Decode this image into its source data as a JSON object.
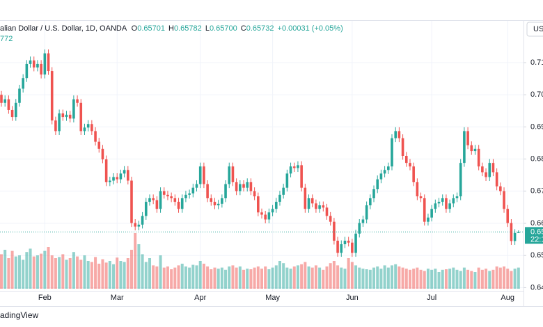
{
  "header": {
    "symbol": "alian Dollar / U.S. Dollar, 1D, OANDA",
    "ohlc": [
      {
        "label": "O",
        "value": "0.65701"
      },
      {
        "label": "H",
        "value": "0.65782"
      },
      {
        "label": "L",
        "value": "0.65700"
      },
      {
        "label": "C",
        "value": "0.65732"
      }
    ],
    "change": "+0.00031 (+0.05%)",
    "indicator": "772",
    "currency": "USD",
    "price_tag": "0.65",
    "countdown": "22:1",
    "brand": "adingView"
  },
  "chart_data": {
    "type": "candlestick",
    "up_color": "#26a69a",
    "down_color": "#ef5350",
    "grid": true,
    "ylim": [
      0.639,
      0.723
    ],
    "yticks": [
      0.71,
      {
        "value": 0.7,
        "label": "0.70"
      },
      0.69,
      0.68,
      0.67,
      0.66,
      0.65,
      0.64
    ],
    "categories": [
      null,
      null,
      null,
      null,
      null,
      null,
      null,
      null,
      null,
      null,
      null,
      null,
      "Feb",
      null,
      null,
      null,
      null,
      null,
      null,
      null,
      null,
      null,
      null,
      null,
      null,
      null,
      null,
      null,
      null,
      null,
      null,
      null,
      "Mar",
      null,
      null,
      null,
      null,
      null,
      null,
      null,
      null,
      null,
      null,
      null,
      null,
      null,
      null,
      null,
      null,
      null,
      null,
      null,
      null,
      null,
      null,
      "Apr",
      null,
      null,
      null,
      null,
      null,
      null,
      null,
      null,
      null,
      null,
      null,
      null,
      null,
      null,
      null,
      null,
      null,
      null,
      null,
      "May",
      null,
      null,
      null,
      null,
      null,
      null,
      null,
      null,
      null,
      null,
      null,
      null,
      null,
      null,
      null,
      null,
      null,
      null,
      null,
      null,
      null,
      "Jun",
      null,
      null,
      null,
      null,
      null,
      null,
      null,
      null,
      null,
      null,
      null,
      null,
      null,
      null,
      null,
      null,
      null,
      null,
      null,
      null,
      null,
      "Jul",
      null,
      null,
      null,
      null,
      null,
      null,
      null,
      null,
      null,
      null,
      null,
      null,
      null,
      null,
      null,
      null,
      null,
      null,
      null,
      null,
      "Aug",
      null,
      null,
      null
    ],
    "open": [
      0.7,
      0.6975,
      0.6986,
      0.6953,
      0.6931,
      0.6975,
      0.7019,
      0.7052,
      0.7096,
      0.7107,
      0.7085,
      0.7096,
      0.7063,
      0.7129,
      0.7074,
      0.692,
      0.6887,
      0.6942,
      0.6931,
      0.6938,
      0.6926,
      0.6986,
      0.6975,
      0.6887,
      0.6898,
      0.6909,
      0.6887,
      0.6854,
      0.6832,
      0.6799,
      0.6728,
      0.6733,
      0.6744,
      0.6737,
      0.6755,
      0.6766,
      0.6733,
      0.6601,
      0.659,
      0.6596,
      0.6623,
      0.6667,
      0.6678,
      0.6672,
      0.6645,
      0.67,
      0.6689,
      0.6684,
      0.6678,
      0.6667,
      0.6645,
      0.6678,
      0.6689,
      0.6693,
      0.6711,
      0.6722,
      0.6777,
      0.6722,
      0.6678,
      0.6667,
      0.6656,
      0.6661,
      0.6678,
      0.6722,
      0.6777,
      0.6728,
      0.67,
      0.6722,
      0.6711,
      0.6728,
      0.67,
      0.6684,
      0.6634,
      0.6627,
      0.6612,
      0.6634,
      0.6645,
      0.6667,
      0.6689,
      0.6711,
      0.6755,
      0.6777,
      0.6772,
      0.6781,
      0.6711,
      0.6645,
      0.6678,
      0.6662,
      0.6645,
      0.6656,
      0.6649,
      0.6623,
      0.6605,
      0.6546,
      0.6508,
      0.6535,
      0.6546,
      0.654,
      0.6508,
      0.6568,
      0.6601,
      0.6612,
      0.6656,
      0.6678,
      0.6706,
      0.6737,
      0.6755,
      0.6766,
      0.6777,
      0.6865,
      0.6887,
      0.6865,
      0.681,
      0.6788,
      0.6777,
      0.6728,
      0.6684,
      0.6678,
      0.6605,
      0.6618,
      0.6645,
      0.6662,
      0.6667,
      0.6678,
      0.6645,
      0.6662,
      0.6678,
      0.6684,
      0.6788,
      0.6887,
      0.6843,
      0.6825,
      0.6832,
      0.6777,
      0.6759,
      0.6744,
      0.6788,
      0.6759,
      0.6715,
      0.67,
      0.6645,
      0.6601,
      0.6545,
      0.65701
    ],
    "high": [
      0.7012,
      0.6998,
      0.6998,
      0.6965,
      0.6987,
      0.7031,
      0.7064,
      0.7108,
      0.7119,
      0.7119,
      0.7108,
      0.7108,
      0.7141,
      0.7141,
      0.7086,
      0.6932,
      0.6954,
      0.6954,
      0.695,
      0.695,
      0.6998,
      0.6998,
      0.6987,
      0.691,
      0.6921,
      0.6921,
      0.6899,
      0.6866,
      0.6844,
      0.6811,
      0.6745,
      0.6756,
      0.6756,
      0.6767,
      0.6778,
      0.6778,
      0.6745,
      0.6613,
      0.6608,
      0.6635,
      0.6679,
      0.669,
      0.669,
      0.6684,
      0.6712,
      0.6712,
      0.6701,
      0.6696,
      0.669,
      0.6679,
      0.669,
      0.6701,
      0.6705,
      0.6723,
      0.6734,
      0.6789,
      0.6789,
      0.6734,
      0.669,
      0.6679,
      0.6673,
      0.669,
      0.6734,
      0.6789,
      0.6789,
      0.674,
      0.6734,
      0.6734,
      0.674,
      0.674,
      0.6712,
      0.6696,
      0.6646,
      0.6639,
      0.6646,
      0.6657,
      0.6679,
      0.6701,
      0.6723,
      0.6767,
      0.6789,
      0.6789,
      0.6793,
      0.6793,
      0.6723,
      0.669,
      0.669,
      0.6674,
      0.6668,
      0.6668,
      0.6661,
      0.6635,
      0.6617,
      0.6558,
      0.6547,
      0.6558,
      0.6558,
      0.6552,
      0.658,
      0.6613,
      0.6624,
      0.6668,
      0.669,
      0.6718,
      0.6749,
      0.6767,
      0.6778,
      0.6789,
      0.6877,
      0.6899,
      0.6899,
      0.6877,
      0.6822,
      0.68,
      0.6789,
      0.674,
      0.6696,
      0.669,
      0.663,
      0.6657,
      0.6674,
      0.6679,
      0.669,
      0.669,
      0.6674,
      0.669,
      0.6696,
      0.68,
      0.6899,
      0.6899,
      0.6855,
      0.6844,
      0.6844,
      0.6789,
      0.6771,
      0.68,
      0.68,
      0.6771,
      0.6727,
      0.6712,
      0.6657,
      0.6613,
      0.6582,
      0.65782
    ],
    "low": [
      0.6963,
      0.6963,
      0.6941,
      0.6919,
      0.6919,
      0.6963,
      0.7007,
      0.704,
      0.7084,
      0.7073,
      0.7073,
      0.7051,
      0.7051,
      0.7062,
      0.6908,
      0.6875,
      0.6875,
      0.6919,
      0.6919,
      0.6914,
      0.6914,
      0.6963,
      0.6875,
      0.6875,
      0.6886,
      0.6875,
      0.6842,
      0.682,
      0.6787,
      0.6716,
      0.6716,
      0.6721,
      0.6725,
      0.6725,
      0.6743,
      0.6721,
      0.6589,
      0.6578,
      0.6578,
      0.6584,
      0.6611,
      0.6655,
      0.666,
      0.6633,
      0.6633,
      0.6677,
      0.6672,
      0.6666,
      0.6655,
      0.6633,
      0.6633,
      0.6666,
      0.6677,
      0.6681,
      0.6699,
      0.671,
      0.671,
      0.6666,
      0.6655,
      0.6644,
      0.6644,
      0.6649,
      0.6666,
      0.671,
      0.6716,
      0.6688,
      0.6688,
      0.6699,
      0.6699,
      0.6688,
      0.6672,
      0.6622,
      0.6615,
      0.66,
      0.66,
      0.6622,
      0.6633,
      0.6655,
      0.6677,
      0.6699,
      0.6743,
      0.676,
      0.676,
      0.6699,
      0.6633,
      0.6633,
      0.665,
      0.6633,
      0.6633,
      0.6637,
      0.6611,
      0.6593,
      0.6534,
      0.6496,
      0.6496,
      0.6523,
      0.6528,
      0.6496,
      0.6496,
      0.6556,
      0.6589,
      0.66,
      0.6644,
      0.6666,
      0.6694,
      0.6725,
      0.6743,
      0.6754,
      0.6765,
      0.6853,
      0.6853,
      0.6798,
      0.6776,
      0.6765,
      0.6716,
      0.6672,
      0.6666,
      0.6593,
      0.6593,
      0.6606,
      0.6633,
      0.665,
      0.6655,
      0.6633,
      0.6633,
      0.665,
      0.6666,
      0.6672,
      0.6776,
      0.6831,
      0.6813,
      0.6813,
      0.6765,
      0.6747,
      0.6732,
      0.6732,
      0.6747,
      0.6703,
      0.6688,
      0.6633,
      0.6589,
      0.6533,
      0.6533,
      0.657
    ],
    "close": [
      0.6975,
      0.6986,
      0.6953,
      0.6931,
      0.6975,
      0.7019,
      0.7052,
      0.7096,
      0.7107,
      0.7085,
      0.7096,
      0.7063,
      0.7129,
      0.7074,
      0.692,
      0.6887,
      0.6942,
      0.6931,
      0.6938,
      0.6926,
      0.6986,
      0.6975,
      0.6887,
      0.6898,
      0.6909,
      0.6887,
      0.6854,
      0.6832,
      0.6799,
      0.6728,
      0.6733,
      0.6744,
      0.6737,
      0.6755,
      0.6766,
      0.6733,
      0.6601,
      0.659,
      0.6596,
      0.6623,
      0.6667,
      0.6678,
      0.6672,
      0.6645,
      0.67,
      0.6689,
      0.6684,
      0.6678,
      0.6667,
      0.6645,
      0.6678,
      0.6689,
      0.6693,
      0.6711,
      0.6722,
      0.6777,
      0.6722,
      0.6678,
      0.6667,
      0.6656,
      0.6661,
      0.6678,
      0.6722,
      0.6777,
      0.6728,
      0.67,
      0.6722,
      0.6711,
      0.6728,
      0.67,
      0.6684,
      0.6634,
      0.6627,
      0.6612,
      0.6634,
      0.6645,
      0.6667,
      0.6689,
      0.6711,
      0.6755,
      0.6777,
      0.6772,
      0.6781,
      0.6711,
      0.6645,
      0.6678,
      0.6662,
      0.6645,
      0.6656,
      0.6649,
      0.6623,
      0.6605,
      0.6546,
      0.6508,
      0.6535,
      0.6546,
      0.654,
      0.6508,
      0.6568,
      0.6601,
      0.6612,
      0.6656,
      0.6678,
      0.6706,
      0.6737,
      0.6755,
      0.6766,
      0.6777,
      0.6865,
      0.6887,
      0.6865,
      0.681,
      0.6788,
      0.6777,
      0.6728,
      0.6684,
      0.6678,
      0.6605,
      0.6618,
      0.6645,
      0.6662,
      0.6667,
      0.6678,
      0.6645,
      0.6662,
      0.6678,
      0.6684,
      0.6788,
      0.6887,
      0.6843,
      0.6825,
      0.6832,
      0.6777,
      0.6759,
      0.6744,
      0.6788,
      0.6759,
      0.6715,
      0.67,
      0.6645,
      0.6601,
      0.6545,
      0.65701,
      0.65732
    ],
    "volume": [
      62,
      70,
      55,
      68,
      58,
      60,
      52,
      66,
      72,
      58,
      60,
      63,
      68,
      75,
      60,
      55,
      57,
      62,
      52,
      55,
      66,
      58,
      52,
      60,
      50,
      48,
      57,
      45,
      53,
      47,
      50,
      44,
      56,
      50,
      48,
      55,
      70,
      100,
      80,
      62,
      48,
      55,
      42,
      40,
      60,
      38,
      40,
      35,
      38,
      42,
      45,
      40,
      38,
      43,
      42,
      50,
      45,
      40,
      35,
      38,
      36,
      38,
      34,
      40,
      42,
      38,
      40,
      34,
      36,
      35,
      38,
      40,
      36,
      40,
      35,
      38,
      42,
      50,
      46,
      38,
      36,
      40,
      42,
      44,
      48,
      40,
      38,
      42,
      38,
      34,
      40,
      46,
      50,
      42,
      38,
      36,
      55,
      48,
      42,
      38,
      36,
      35,
      34,
      38,
      40,
      36,
      42,
      38,
      42,
      44,
      40,
      38,
      36,
      34,
      36,
      38,
      34,
      32,
      36,
      34,
      36,
      30,
      34,
      35,
      36,
      38,
      34,
      32,
      38,
      34,
      32,
      30,
      38,
      34,
      36,
      32,
      34,
      40,
      38,
      40,
      36,
      32,
      36,
      38
    ]
  }
}
